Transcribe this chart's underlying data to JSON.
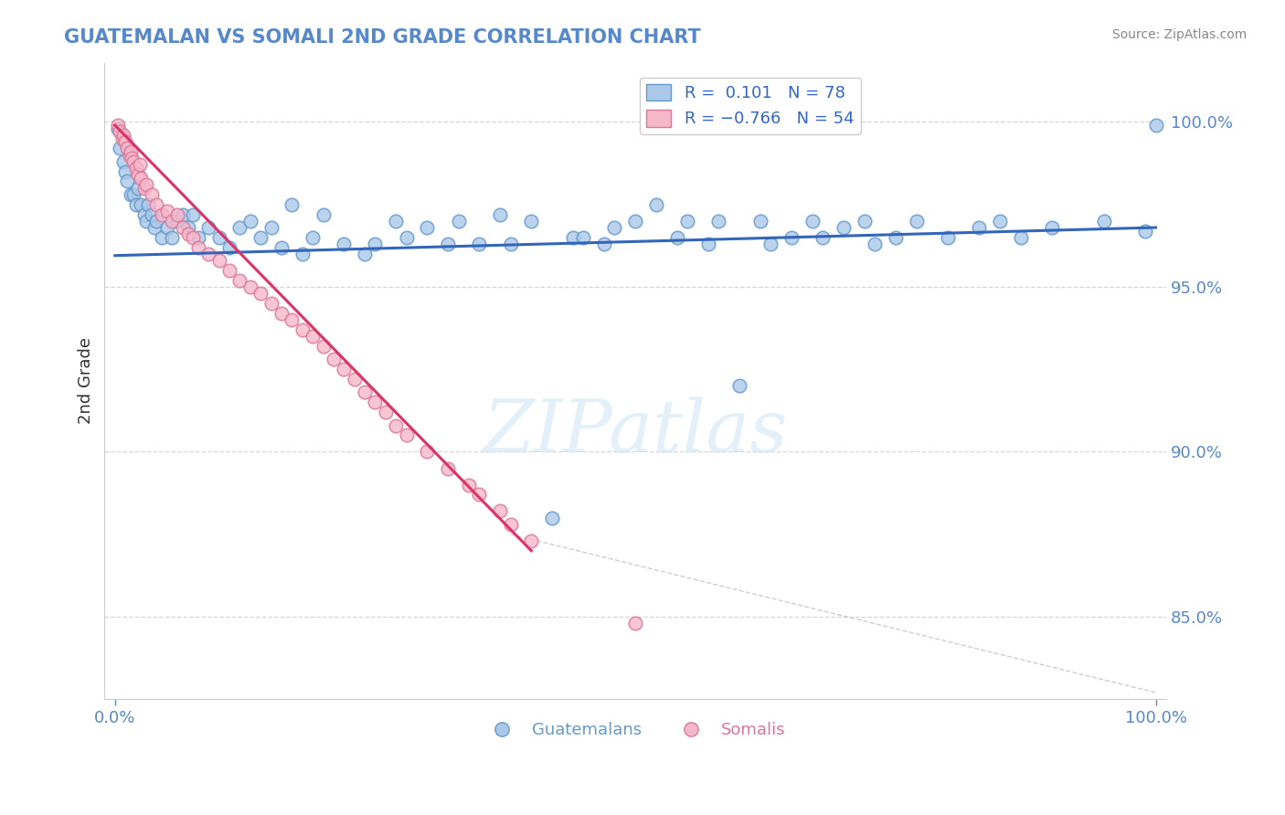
{
  "title": "GUATEMALAN VS SOMALI 2ND GRADE CORRELATION CHART",
  "source_text": "Source: ZipAtlas.com",
  "ylabel": "2nd Grade",
  "watermark": "ZIPatlas",
  "y_ticks": [
    0.85,
    0.9,
    0.95,
    1.0
  ],
  "y_tick_labels": [
    "85.0%",
    "90.0%",
    "95.0%",
    "100.0%"
  ],
  "y_min": 0.825,
  "y_max": 1.018,
  "x_min": -1.0,
  "x_max": 101.0,
  "legend_R1": "R =  0.101",
  "legend_N1": "N = 78",
  "legend_R2": "R = -0.766",
  "legend_N2": "N = 54",
  "blue_color": "#aac8e8",
  "blue_edge": "#6699cc",
  "pink_color": "#f5b8cb",
  "pink_edge": "#dd7799",
  "blue_line_color": "#3366bb",
  "pink_line_color": "#dd3366",
  "scatter_size": 110,
  "guatemalan_x": [
    0.3,
    0.5,
    0.8,
    1.0,
    1.2,
    1.5,
    1.8,
    2.0,
    2.2,
    2.5,
    2.8,
    3.0,
    3.2,
    3.5,
    3.8,
    4.0,
    4.5,
    5.0,
    5.5,
    6.0,
    6.5,
    7.0,
    7.5,
    8.0,
    9.0,
    10.0,
    11.0,
    12.0,
    13.0,
    14.0,
    15.0,
    16.0,
    17.0,
    18.0,
    19.0,
    20.0,
    22.0,
    24.0,
    25.0,
    27.0,
    28.0,
    30.0,
    32.0,
    33.0,
    35.0,
    37.0,
    38.0,
    40.0,
    42.0,
    44.0,
    45.0,
    47.0,
    48.0,
    50.0,
    52.0,
    54.0,
    55.0,
    57.0,
    58.0,
    60.0,
    62.0,
    63.0,
    65.0,
    67.0,
    68.0,
    70.0,
    72.0,
    73.0,
    75.0,
    77.0,
    80.0,
    83.0,
    85.0,
    87.0,
    90.0,
    95.0,
    99.0,
    100.0
  ],
  "guatemalan_y": [
    0.998,
    0.992,
    0.988,
    0.985,
    0.982,
    0.978,
    0.978,
    0.975,
    0.98,
    0.975,
    0.972,
    0.97,
    0.975,
    0.972,
    0.968,
    0.97,
    0.965,
    0.968,
    0.965,
    0.97,
    0.972,
    0.968,
    0.972,
    0.965,
    0.968,
    0.965,
    0.962,
    0.968,
    0.97,
    0.965,
    0.968,
    0.962,
    0.975,
    0.96,
    0.965,
    0.972,
    0.963,
    0.96,
    0.963,
    0.97,
    0.965,
    0.968,
    0.963,
    0.97,
    0.963,
    0.972,
    0.963,
    0.97,
    0.88,
    0.965,
    0.965,
    0.963,
    0.968,
    0.97,
    0.975,
    0.965,
    0.97,
    0.963,
    0.97,
    0.92,
    0.97,
    0.963,
    0.965,
    0.97,
    0.965,
    0.968,
    0.97,
    0.963,
    0.965,
    0.97,
    0.965,
    0.968,
    0.97,
    0.965,
    0.968,
    0.97,
    0.967,
    0.999
  ],
  "somali_x": [
    0.3,
    0.5,
    0.7,
    0.8,
    1.0,
    1.2,
    1.4,
    1.5,
    1.6,
    1.8,
    2.0,
    2.2,
    2.4,
    2.5,
    2.8,
    3.0,
    3.5,
    4.0,
    4.5,
    5.0,
    5.5,
    6.0,
    6.5,
    7.0,
    7.5,
    8.0,
    9.0,
    10.0,
    11.0,
    12.0,
    13.0,
    14.0,
    15.0,
    16.0,
    17.0,
    18.0,
    19.0,
    20.0,
    21.0,
    22.0,
    23.0,
    24.0,
    25.0,
    26.0,
    27.0,
    28.0,
    30.0,
    32.0,
    34.0,
    35.0,
    37.0,
    38.0,
    40.0,
    50.0
  ],
  "somali_y": [
    0.999,
    0.997,
    0.995,
    0.996,
    0.994,
    0.992,
    0.99,
    0.991,
    0.989,
    0.988,
    0.986,
    0.984,
    0.987,
    0.983,
    0.98,
    0.981,
    0.978,
    0.975,
    0.972,
    0.973,
    0.97,
    0.972,
    0.968,
    0.966,
    0.965,
    0.962,
    0.96,
    0.958,
    0.955,
    0.952,
    0.95,
    0.948,
    0.945,
    0.942,
    0.94,
    0.937,
    0.935,
    0.932,
    0.928,
    0.925,
    0.922,
    0.918,
    0.915,
    0.912,
    0.908,
    0.905,
    0.9,
    0.895,
    0.89,
    0.887,
    0.882,
    0.878,
    0.873,
    0.848
  ],
  "blue_trendline_x": [
    0,
    100
  ],
  "blue_trendline_y": [
    0.9595,
    0.968
  ],
  "pink_trendline_x": [
    0.0,
    40.0
  ],
  "pink_trendline_y": [
    0.999,
    0.87
  ],
  "dashed_line_x": [
    38.0,
    100.0
  ],
  "dashed_line_y": [
    0.875,
    0.827
  ]
}
